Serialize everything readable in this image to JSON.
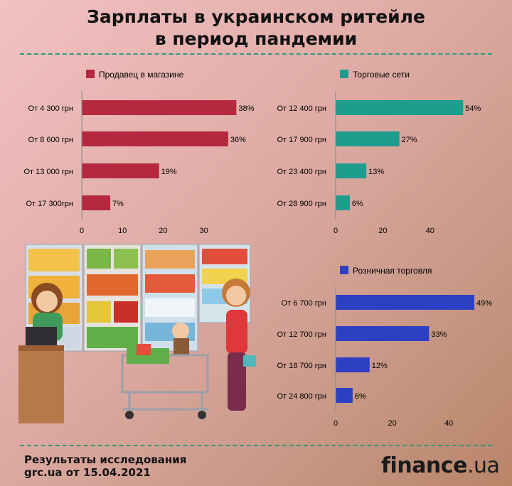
{
  "title": {
    "line1": "Зарплаты в украинском ритейле",
    "line2": "в период пандемии"
  },
  "colors": {
    "seller": "#b5293e",
    "chains": "#1e9c8e",
    "retail": "#2d3fc2",
    "divider": "#2f9a7e"
  },
  "chart_data": [
    {
      "type": "bar",
      "orientation": "horizontal",
      "legend": "Продавец в магазине",
      "categories": [
        "От 4 300 грн",
        "От 8 600 грн",
        "От 13 000 грн",
        "От 17 300грн"
      ],
      "values": [
        38,
        36,
        19,
        7
      ],
      "labels": [
        "38%",
        "36%",
        "19%",
        "7%"
      ],
      "xticks": [
        "0",
        "10",
        "20",
        "30"
      ],
      "tickValues": [
        0,
        10,
        20,
        30
      ],
      "xlim": [
        0,
        40
      ]
    },
    {
      "type": "bar",
      "orientation": "horizontal",
      "legend": "Торговые сети",
      "categories": [
        "От 12 400 грн",
        "От 17 900 грн",
        "От 23 400 грн",
        "От 28 900 грн"
      ],
      "values": [
        54,
        27,
        13,
        6
      ],
      "labels": [
        "54%",
        "27%",
        "13%",
        "6%"
      ],
      "xticks": [
        "0",
        "20",
        "40"
      ],
      "tickValues": [
        0,
        20,
        40
      ],
      "xlim": [
        0,
        57
      ]
    },
    {
      "type": "bar",
      "orientation": "horizontal",
      "legend": "Розничная торговля",
      "categories": [
        "От 6 700 грн",
        "От 12 700 грн",
        "От 18 700 грн",
        "От 24 800 грн"
      ],
      "values": [
        49,
        33,
        12,
        6
      ],
      "labels": [
        "49%",
        "33%",
        "12%",
        "6%"
      ],
      "xticks": [
        "0",
        "20",
        "40"
      ],
      "tickValues": [
        0,
        20,
        40
      ],
      "xlim": [
        0,
        52
      ]
    }
  ],
  "footer": {
    "line1": "Результаты исследования",
    "line2": "grc.ua от 15.04.2021"
  },
  "brand": {
    "name": "finance",
    "tld": ".ua"
  }
}
